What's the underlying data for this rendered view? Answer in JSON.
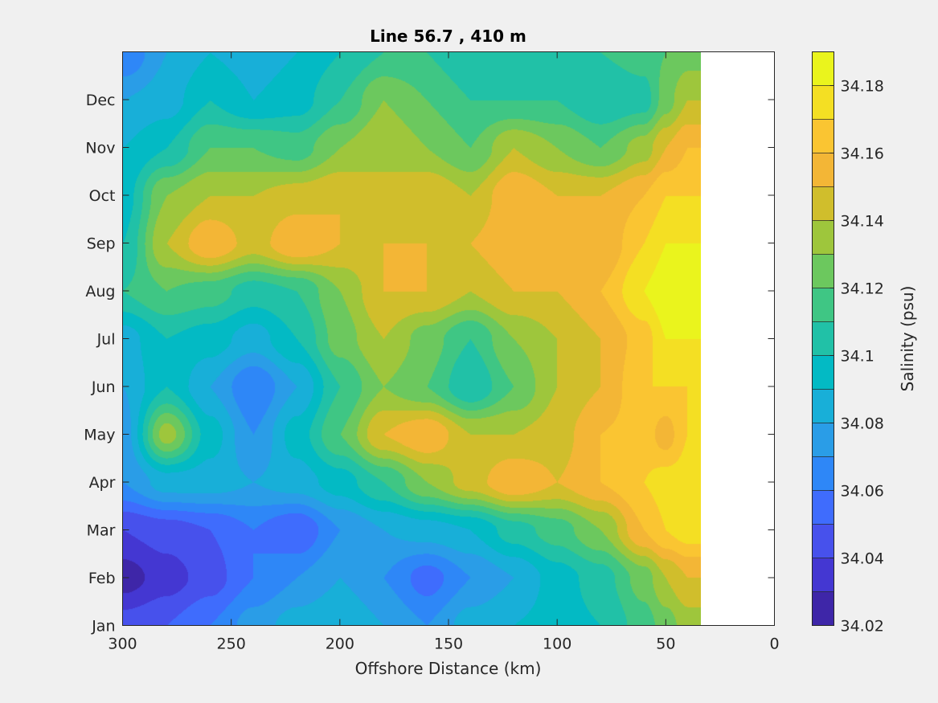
{
  "chart_data": {
    "type": "heatmap",
    "subtype": "filled-contour",
    "title": "Line 56.7 , 410 m",
    "xlabel": "Offshore Distance (km)",
    "ylabel": "",
    "xlim": [
      300,
      0
    ],
    "x_direction": "reversed",
    "x_ticks": [
      "300",
      "250",
      "200",
      "150",
      "100",
      "50",
      "0"
    ],
    "y_ticks": [
      "Jan",
      "Feb",
      "Mar",
      "Apr",
      "May",
      "Jun",
      "Jul",
      "Aug",
      "Sep",
      "Oct",
      "Nov",
      "Dec"
    ],
    "data_extent_km": [
      300,
      34
    ],
    "colorbar": {
      "label": "Salinity (psu)",
      "range": [
        34.02,
        34.19
      ],
      "levels": [
        34.02,
        34.03,
        34.04,
        34.05,
        34.06,
        34.07,
        34.08,
        34.09,
        34.1,
        34.11,
        34.12,
        34.13,
        34.14,
        34.15,
        34.16,
        34.17,
        34.18,
        34.19
      ],
      "tick_labels": [
        "34.02",
        "34.04",
        "34.06",
        "34.08",
        "34.1",
        "34.12",
        "34.14",
        "34.16",
        "34.18"
      ],
      "colors": [
        "#3e26a8",
        "#4437d2",
        "#4751ec",
        "#3f6cfd",
        "#2e87f7",
        "#2a9de7",
        "#18afd8",
        "#03bac4",
        "#21c1a7",
        "#3fc684",
        "#6cc85e",
        "#9ec63c",
        "#d0be2c",
        "#f3b636",
        "#fac532",
        "#f4df23",
        "#eaf41d"
      ]
    },
    "distance_km": [
      300,
      280,
      260,
      240,
      220,
      200,
      180,
      160,
      140,
      120,
      100,
      80,
      60,
      50,
      40,
      34
    ],
    "months": [
      "Jan",
      "Feb",
      "Mar",
      "Apr",
      "May",
      "Jun",
      "Jul",
      "Aug",
      "Sep",
      "Oct",
      "Nov",
      "Dec",
      "Jan"
    ],
    "salinity": [
      [
        34.045,
        34.05,
        34.06,
        34.075,
        34.085,
        34.09,
        34.08,
        34.07,
        34.085,
        34.09,
        34.095,
        34.1,
        34.115,
        34.125,
        34.135,
        34.135
      ],
      [
        34.025,
        34.035,
        34.045,
        34.06,
        34.07,
        34.08,
        34.07,
        34.055,
        34.07,
        34.08,
        34.095,
        34.105,
        34.125,
        34.14,
        34.15,
        34.15
      ],
      [
        34.04,
        34.045,
        34.05,
        34.06,
        34.05,
        34.07,
        34.08,
        34.085,
        34.09,
        34.105,
        34.115,
        34.13,
        34.16,
        34.17,
        34.175,
        34.175
      ],
      [
        34.07,
        34.085,
        34.085,
        34.08,
        34.085,
        34.095,
        34.11,
        34.13,
        34.145,
        34.16,
        34.15,
        34.16,
        34.17,
        34.175,
        34.175,
        34.175
      ],
      [
        34.075,
        34.135,
        34.095,
        34.07,
        34.095,
        34.12,
        34.15,
        34.16,
        34.14,
        34.14,
        34.145,
        34.16,
        34.165,
        34.155,
        34.17,
        34.175
      ],
      [
        34.08,
        34.1,
        34.08,
        34.06,
        34.08,
        34.11,
        34.13,
        34.12,
        34.1,
        34.12,
        34.14,
        34.15,
        34.17,
        34.17,
        34.17,
        34.175
      ],
      [
        34.085,
        34.1,
        34.095,
        34.085,
        34.1,
        34.125,
        34.14,
        34.125,
        34.11,
        34.13,
        34.14,
        34.15,
        34.165,
        34.18,
        34.18,
        34.18
      ],
      [
        34.11,
        34.12,
        34.115,
        34.105,
        34.11,
        34.13,
        34.15,
        34.15,
        34.14,
        34.15,
        34.15,
        34.16,
        34.18,
        34.188,
        34.185,
        34.18
      ],
      [
        34.1,
        34.14,
        34.16,
        34.145,
        34.16,
        34.15,
        34.15,
        34.15,
        34.15,
        34.16,
        34.16,
        34.15,
        34.17,
        34.18,
        34.18,
        34.18
      ],
      [
        34.095,
        34.13,
        34.14,
        34.14,
        34.145,
        34.15,
        34.14,
        34.15,
        34.14,
        34.16,
        34.15,
        34.15,
        34.16,
        34.17,
        34.17,
        34.17
      ],
      [
        34.09,
        34.1,
        34.12,
        34.12,
        34.115,
        34.13,
        34.14,
        34.13,
        34.12,
        34.14,
        34.13,
        34.12,
        34.135,
        34.15,
        34.16,
        34.16
      ],
      [
        34.08,
        34.085,
        34.1,
        34.09,
        34.095,
        34.11,
        34.13,
        34.12,
        34.11,
        34.11,
        34.11,
        34.1,
        34.105,
        34.125,
        34.14,
        34.14
      ],
      [
        34.06,
        34.08,
        34.09,
        34.085,
        34.09,
        34.1,
        34.11,
        34.11,
        34.1,
        34.11,
        34.105,
        34.11,
        34.115,
        34.12,
        34.125,
        34.125
      ]
    ]
  }
}
